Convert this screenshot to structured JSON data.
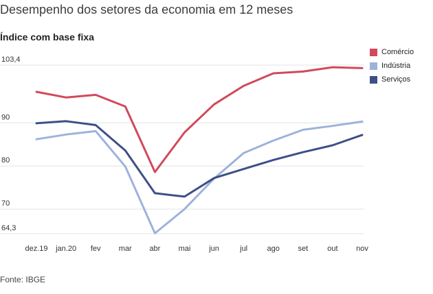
{
  "header": {
    "title": "Desempenho dos setores da economia em 12 meses",
    "subtitle": "Índice com base fixa"
  },
  "footer": {
    "source": "Fonte: IBGE"
  },
  "chart_data": {
    "type": "line",
    "title": "Desempenho dos setores da economia em 12 meses",
    "subtitle": "Índice com base fixa",
    "xlabel": "",
    "ylabel": "",
    "categories": [
      "dez.19",
      "jan.20",
      "fev",
      "mar",
      "abr",
      "mai",
      "jun",
      "jul",
      "ago",
      "set",
      "out",
      "nov"
    ],
    "yticks": [
      {
        "value": 103.4,
        "label": "103,4"
      },
      {
        "value": 90,
        "label": "90"
      },
      {
        "value": 80,
        "label": "80"
      },
      {
        "value": 70,
        "label": "70"
      },
      {
        "value": 64.3,
        "label": "64,3"
      }
    ],
    "ylim": [
      64.3,
      103.4
    ],
    "grid": true,
    "legend_position": "top-right",
    "series": [
      {
        "name": "Comércio",
        "color": "#d1495b",
        "values": [
          97.2,
          95.9,
          96.5,
          93.8,
          78.6,
          87.8,
          94.3,
          98.6,
          101.5,
          101.9,
          102.9,
          102.7
        ]
      },
      {
        "name": "Indústria",
        "color": "#9db2dc",
        "values": [
          86.2,
          87.3,
          88.1,
          79.9,
          64.4,
          70.0,
          77.1,
          83.0,
          85.9,
          88.4,
          89.3,
          90.3
        ]
      },
      {
        "name": "Serviços",
        "color": "#3e4f86",
        "values": [
          89.9,
          90.4,
          89.5,
          83.6,
          73.7,
          72.9,
          77.2,
          79.3,
          81.4,
          83.2,
          84.8,
          87.2
        ]
      }
    ]
  }
}
